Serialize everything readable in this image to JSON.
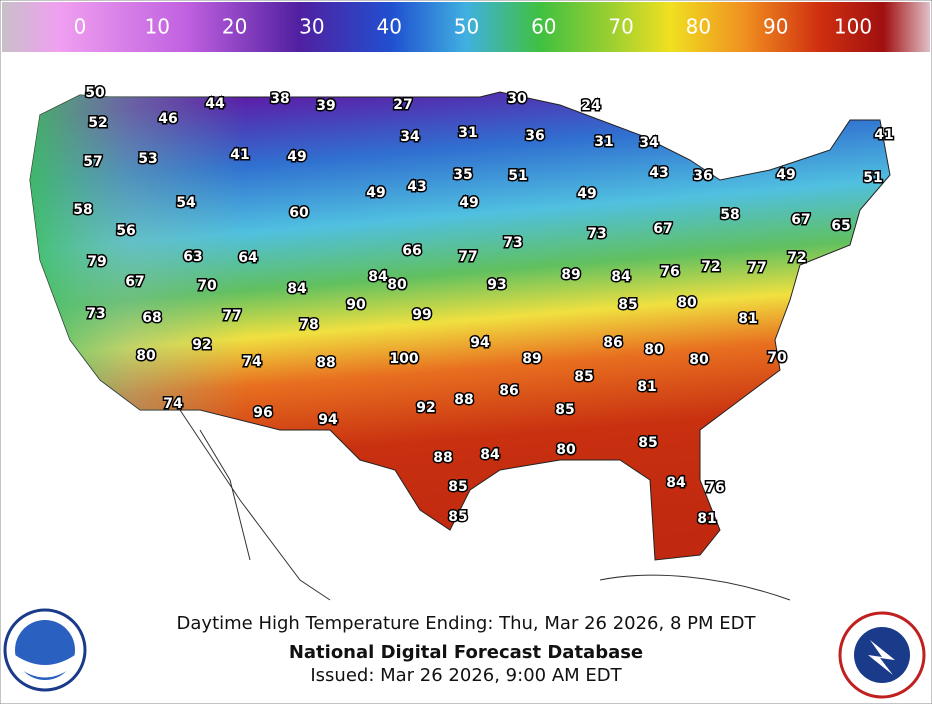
{
  "colorbar": {
    "ticks": [
      0,
      10,
      20,
      30,
      40,
      50,
      60,
      70,
      80,
      90,
      100
    ]
  },
  "temperatures": [
    50,
    52,
    46,
    44,
    38,
    39,
    27,
    30,
    24,
    57,
    53,
    41,
    34,
    31,
    36,
    31,
    34,
    41,
    49,
    35,
    51,
    43,
    36,
    49,
    51,
    58,
    54,
    60,
    49,
    43,
    49,
    49,
    58,
    67,
    65,
    56,
    66,
    77,
    73,
    73,
    67,
    79,
    63,
    64,
    72,
    77,
    72,
    67,
    70,
    84,
    84,
    80,
    93,
    89,
    84,
    76,
    73,
    68,
    77,
    90,
    99,
    85,
    80,
    78,
    81,
    80,
    92,
    74,
    88,
    100,
    94,
    89,
    86,
    80,
    80,
    70,
    85,
    81,
    86,
    74,
    96,
    94,
    92,
    88,
    85,
    85,
    80,
    88,
    84,
    85,
    84,
    76,
    85,
    81
  ],
  "caption": {
    "subtitle": "Daytime High Temperature Ending: Thu, Mar 26 2026, 8 PM EDT",
    "title": "National Digital Forecast Database",
    "issued": "Issued: Mar 26 2026, 9:00 AM EDT"
  }
}
